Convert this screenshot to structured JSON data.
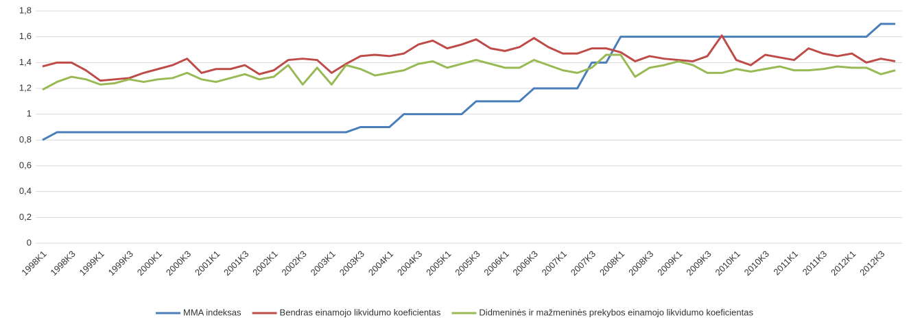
{
  "chart_data": {
    "type": "line",
    "categories": [
      "1998K1",
      null,
      "1998K3",
      null,
      "1999K1",
      null,
      "1999K3",
      null,
      "2000K1",
      null,
      "2000K3",
      null,
      "2001K1",
      null,
      "2001K3",
      null,
      "2002K1",
      null,
      "2002K3",
      null,
      "2003K1",
      null,
      "2003K3",
      null,
      "2004K1",
      null,
      "2004K3",
      null,
      "2005K1",
      null,
      "2005K3",
      null,
      "2006K1",
      null,
      "2006K3",
      null,
      "2007K1",
      null,
      "2007K3",
      null,
      "2008K1",
      null,
      "2008K3",
      null,
      "2009K1",
      null,
      "2009K3",
      null,
      "2010K1",
      null,
      "2010K3",
      null,
      "2011K1",
      null,
      "2011K3",
      null,
      "2012K1",
      null,
      "2012K3",
      null
    ],
    "series": [
      {
        "name": "MMA indeksas",
        "color": "#4a7ebb",
        "values": [
          0.8,
          0.86,
          0.86,
          0.86,
          0.86,
          0.86,
          0.86,
          0.86,
          0.86,
          0.86,
          0.86,
          0.86,
          0.86,
          0.86,
          0.86,
          0.86,
          0.86,
          0.86,
          0.86,
          0.86,
          0.86,
          0.86,
          0.9,
          0.9,
          0.9,
          1.0,
          1.0,
          1.0,
          1.0,
          1.0,
          1.1,
          1.1,
          1.1,
          1.1,
          1.2,
          1.2,
          1.2,
          1.2,
          1.4,
          1.4,
          1.6,
          1.6,
          1.6,
          1.6,
          1.6,
          1.6,
          1.6,
          1.6,
          1.6,
          1.6,
          1.6,
          1.6,
          1.6,
          1.6,
          1.6,
          1.6,
          1.6,
          1.6,
          1.7,
          1.7
        ]
      },
      {
        "name": "Bendras einamojo likvidumo koeficientas",
        "color": "#be4b48",
        "values": [
          1.37,
          1.4,
          1.4,
          1.34,
          1.26,
          1.27,
          1.28,
          1.32,
          1.35,
          1.38,
          1.43,
          1.32,
          1.35,
          1.35,
          1.38,
          1.31,
          1.34,
          1.42,
          1.43,
          1.42,
          1.32,
          1.39,
          1.45,
          1.46,
          1.45,
          1.47,
          1.54,
          1.57,
          1.51,
          1.54,
          1.58,
          1.51,
          1.49,
          1.52,
          1.59,
          1.52,
          1.47,
          1.47,
          1.51,
          1.51,
          1.48,
          1.41,
          1.45,
          1.43,
          1.42,
          1.41,
          1.45,
          1.61,
          1.42,
          1.38,
          1.46,
          1.44,
          1.42,
          1.51,
          1.47,
          1.45,
          1.47,
          1.4,
          1.43,
          1.41
        ]
      },
      {
        "name": "Didmeninės ir mažmeninės prekybos einamojo likvidumo koeficientas",
        "color": "#98b954",
        "values": [
          1.19,
          1.25,
          1.29,
          1.27,
          1.23,
          1.24,
          1.27,
          1.25,
          1.27,
          1.28,
          1.32,
          1.27,
          1.25,
          1.28,
          1.31,
          1.27,
          1.29,
          1.38,
          1.23,
          1.36,
          1.23,
          1.38,
          1.35,
          1.3,
          1.32,
          1.34,
          1.39,
          1.41,
          1.36,
          1.39,
          1.42,
          1.39,
          1.36,
          1.36,
          1.42,
          1.38,
          1.34,
          1.32,
          1.36,
          1.46,
          1.46,
          1.29,
          1.36,
          1.38,
          1.41,
          1.38,
          1.32,
          1.32,
          1.35,
          1.33,
          1.35,
          1.37,
          1.34,
          1.34,
          1.35,
          1.37,
          1.36,
          1.36,
          1.31,
          1.34
        ]
      }
    ],
    "ylim": [
      0,
      1.8
    ],
    "yticks": [
      0,
      {
        "value": 0.2,
        "label": "0,2"
      },
      {
        "value": 0.4,
        "label": "0,4"
      },
      {
        "value": 0.6,
        "label": "0,6"
      },
      {
        "value": 0.8,
        "label": "0,8"
      },
      1,
      {
        "value": 1.2,
        "label": "1,2"
      },
      {
        "value": 1.4,
        "label": "1,4"
      },
      {
        "value": 1.6,
        "label": "1,6"
      },
      {
        "value": 1.8,
        "label": "1,8"
      }
    ],
    "grid": true,
    "legend": "bottom"
  }
}
